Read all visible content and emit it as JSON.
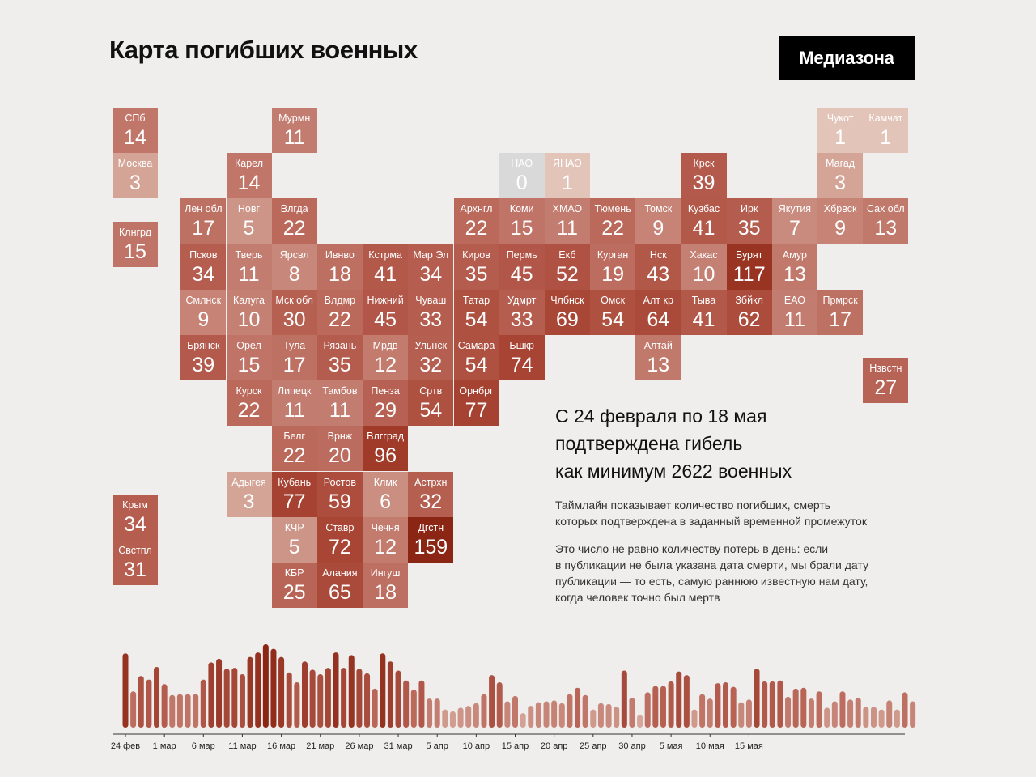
{
  "header": {
    "title": "Карта погибших военных",
    "brand": "Медиазона"
  },
  "colors": {
    "zero": "#d9d9d9",
    "scale_low": "#e2c4b8",
    "scale_mid": "#b66052",
    "scale_high": "#a5402f",
    "scale_max": "#8c2614",
    "axis": "#333333"
  },
  "summary": {
    "line1": "С 24 февраля по 18 мая",
    "line2": "подтверждена гибель",
    "line3": "как минимум 2622 военных"
  },
  "notes": [
    {
      "lines": [
        "Таймлайн показывает количество погибших, смерть",
        "которых подтверждена в заданный временной промежуток"
      ]
    },
    {
      "lines": [
        "Это число не равно количеству потерь в день: если",
        "в публикации не была указана дата смерти, мы брали дату",
        "публикации — то есть, самую раннюю известную нам дату,",
        "когда человек точно был мертв"
      ]
    }
  ],
  "chart_data": [
    {
      "type": "heatmap",
      "regions": [
        {
          "label": "СПб",
          "value": 14,
          "col": 0,
          "row": 0
        },
        {
          "label": "Москва",
          "value": 3,
          "col": 0,
          "row": 1
        },
        {
          "label": "Клнгрд",
          "value": 15,
          "col": 0,
          "row": 2.5
        },
        {
          "label": "Крым",
          "value": 34,
          "col": 0,
          "row": 8.5
        },
        {
          "label": "Свстпл",
          "value": 31,
          "col": 0,
          "row": 9.5
        },
        {
          "label": "Мурмн",
          "value": 11,
          "col": 3.5,
          "row": 0
        },
        {
          "label": "Карел",
          "value": 14,
          "col": 2.5,
          "row": 1
        },
        {
          "label": "Лен обл",
          "value": 17,
          "col": 1.5,
          "row": 2
        },
        {
          "label": "Новг",
          "value": 5,
          "col": 2.5,
          "row": 2
        },
        {
          "label": "Влгда",
          "value": 22,
          "col": 3.5,
          "row": 2
        },
        {
          "label": "Псков",
          "value": 34,
          "col": 1.5,
          "row": 3
        },
        {
          "label": "Тверь",
          "value": 11,
          "col": 2.5,
          "row": 3
        },
        {
          "label": "Ярсвл",
          "value": 8,
          "col": 3.5,
          "row": 3
        },
        {
          "label": "Ивнво",
          "value": 18,
          "col": 4.5,
          "row": 3
        },
        {
          "label": "Кстрма",
          "value": 41,
          "col": 5.5,
          "row": 3
        },
        {
          "label": "Мар Эл",
          "value": 34,
          "col": 6.5,
          "row": 3
        },
        {
          "label": "Смлнск",
          "value": 9,
          "col": 1.5,
          "row": 4
        },
        {
          "label": "Калуга",
          "value": 10,
          "col": 2.5,
          "row": 4
        },
        {
          "label": "Мск обл",
          "value": 30,
          "col": 3.5,
          "row": 4
        },
        {
          "label": "Влдмр",
          "value": 22,
          "col": 4.5,
          "row": 4
        },
        {
          "label": "Нижний",
          "value": 45,
          "col": 5.5,
          "row": 4
        },
        {
          "label": "Чуваш",
          "value": 33,
          "col": 6.5,
          "row": 4
        },
        {
          "label": "Брянск",
          "value": 39,
          "col": 1.5,
          "row": 5
        },
        {
          "label": "Орел",
          "value": 15,
          "col": 2.5,
          "row": 5
        },
        {
          "label": "Тула",
          "value": 17,
          "col": 3.5,
          "row": 5
        },
        {
          "label": "Рязань",
          "value": 35,
          "col": 4.5,
          "row": 5
        },
        {
          "label": "Мрдв",
          "value": 12,
          "col": 5.5,
          "row": 5
        },
        {
          "label": "Ульнск",
          "value": 32,
          "col": 6.5,
          "row": 5
        },
        {
          "label": "Курск",
          "value": 22,
          "col": 2.5,
          "row": 6
        },
        {
          "label": "Липецк",
          "value": 11,
          "col": 3.5,
          "row": 6
        },
        {
          "label": "Тамбов",
          "value": 11,
          "col": 4.5,
          "row": 6
        },
        {
          "label": "Пенза",
          "value": 29,
          "col": 5.5,
          "row": 6
        },
        {
          "label": "Сртв",
          "value": 54,
          "col": 6.5,
          "row": 6
        },
        {
          "label": "Орнбрг",
          "value": 77,
          "col": 7.5,
          "row": 6
        },
        {
          "label": "Белг",
          "value": 22,
          "col": 3.5,
          "row": 7
        },
        {
          "label": "Врнж",
          "value": 20,
          "col": 4.5,
          "row": 7
        },
        {
          "label": "Влгград",
          "value": 96,
          "col": 5.5,
          "row": 7
        },
        {
          "label": "Адыгея",
          "value": 3,
          "col": 2.5,
          "row": 8
        },
        {
          "label": "Кубань",
          "value": 77,
          "col": 3.5,
          "row": 8
        },
        {
          "label": "Ростов",
          "value": 59,
          "col": 4.5,
          "row": 8
        },
        {
          "label": "Клмк",
          "value": 6,
          "col": 5.5,
          "row": 8
        },
        {
          "label": "Астрхн",
          "value": 32,
          "col": 6.5,
          "row": 8
        },
        {
          "label": "КЧР",
          "value": 5,
          "col": 3.5,
          "row": 9
        },
        {
          "label": "Ставр",
          "value": 72,
          "col": 4.5,
          "row": 9
        },
        {
          "label": "Чечня",
          "value": 12,
          "col": 5.5,
          "row": 9
        },
        {
          "label": "Дгстн",
          "value": 159,
          "col": 6.5,
          "row": 9
        },
        {
          "label": "КБР",
          "value": 25,
          "col": 3.5,
          "row": 10
        },
        {
          "label": "Алания",
          "value": 65,
          "col": 4.5,
          "row": 10
        },
        {
          "label": "Ингуш",
          "value": 18,
          "col": 5.5,
          "row": 10
        },
        {
          "label": "Архнгл",
          "value": 22,
          "col": 7.5,
          "row": 2
        },
        {
          "label": "Киров",
          "value": 35,
          "col": 7.5,
          "row": 3
        },
        {
          "label": "Татар",
          "value": 54,
          "col": 7.5,
          "row": 4
        },
        {
          "label": "Самара",
          "value": 54,
          "col": 7.5,
          "row": 5
        },
        {
          "label": "НАО",
          "value": 0,
          "col": 8.5,
          "row": 1
        },
        {
          "label": "Коми",
          "value": 15,
          "col": 8.5,
          "row": 2
        },
        {
          "label": "Пермь",
          "value": 45,
          "col": 8.5,
          "row": 3
        },
        {
          "label": "Удмрт",
          "value": 33,
          "col": 8.5,
          "row": 4
        },
        {
          "label": "Бшкр",
          "value": 74,
          "col": 8.5,
          "row": 5
        },
        {
          "label": "ЯНАО",
          "value": 1,
          "col": 9.5,
          "row": 1
        },
        {
          "label": "ХМАО",
          "value": 11,
          "col": 9.5,
          "row": 2
        },
        {
          "label": "Екб",
          "value": 52,
          "col": 9.5,
          "row": 3
        },
        {
          "label": "Члбнск",
          "value": 69,
          "col": 9.5,
          "row": 4
        },
        {
          "label": "Тюмень",
          "value": 22,
          "col": 10.5,
          "row": 2
        },
        {
          "label": "Курган",
          "value": 19,
          "col": 10.5,
          "row": 3
        },
        {
          "label": "Омск",
          "value": 54,
          "col": 10.5,
          "row": 4
        },
        {
          "label": "Томск",
          "value": 9,
          "col": 11.5,
          "row": 2
        },
        {
          "label": "Нск",
          "value": 43,
          "col": 11.5,
          "row": 3
        },
        {
          "label": "Алт кр",
          "value": 64,
          "col": 11.5,
          "row": 4
        },
        {
          "label": "Алтай",
          "value": 13,
          "col": 11.5,
          "row": 5
        },
        {
          "label": "Крск",
          "value": 39,
          "col": 12.5,
          "row": 1
        },
        {
          "label": "Кузбас",
          "value": 41,
          "col": 12.5,
          "row": 2
        },
        {
          "label": "Хакас",
          "value": 10,
          "col": 12.5,
          "row": 3
        },
        {
          "label": "Тыва",
          "value": 41,
          "col": 12.5,
          "row": 4
        },
        {
          "label": "Ирк",
          "value": 35,
          "col": 13.5,
          "row": 2
        },
        {
          "label": "Бурят",
          "value": 117,
          "col": 13.5,
          "row": 3
        },
        {
          "label": "Збйкл",
          "value": 62,
          "col": 13.5,
          "row": 4
        },
        {
          "label": "Якутия",
          "value": 7,
          "col": 14.5,
          "row": 2
        },
        {
          "label": "Амур",
          "value": 13,
          "col": 14.5,
          "row": 3
        },
        {
          "label": "ЕАО",
          "value": 11,
          "col": 14.5,
          "row": 4
        },
        {
          "label": "Чукот",
          "value": 1,
          "col": 15.5,
          "row": 0
        },
        {
          "label": "Магад",
          "value": 3,
          "col": 15.5,
          "row": 1
        },
        {
          "label": "Хбрвск",
          "value": 9,
          "col": 15.5,
          "row": 2
        },
        {
          "label": "Прмрск",
          "value": 17,
          "col": 15.5,
          "row": 4
        },
        {
          "label": "Камчат",
          "value": 1,
          "col": 16.5,
          "row": 0
        },
        {
          "label": "Сах обл",
          "value": 13,
          "col": 16.5,
          "row": 2
        },
        {
          "label": "Нзвстн",
          "value": 27,
          "col": 16.5,
          "row": 5.5
        }
      ]
    },
    {
      "type": "bar",
      "x_tick_labels": [
        "24 фев",
        "1 мар",
        "6 мар",
        "11 мар",
        "16 мар",
        "21 мар",
        "26 мар",
        "31 мар",
        "5 апр",
        "10 апр",
        "15 апр",
        "20 апр",
        "25 апр",
        "30 апр",
        "5 мая",
        "10 мая",
        "15 мая"
      ],
      "values": [
        82,
        40,
        57,
        53,
        67,
        48,
        36,
        37,
        37,
        37,
        53,
        72,
        76,
        65,
        66,
        59,
        78,
        83,
        92,
        87,
        78,
        61,
        50,
        73,
        64,
        59,
        66,
        83,
        66,
        80,
        65,
        60,
        43,
        82,
        73,
        63,
        52,
        42,
        52,
        32,
        32,
        20,
        18,
        22,
        24,
        27,
        37,
        58,
        50,
        29,
        35,
        16,
        24,
        28,
        29,
        30,
        27,
        37,
        44,
        36,
        20,
        27,
        26,
        23,
        63,
        33,
        14,
        39,
        46,
        46,
        51,
        62,
        58,
        20,
        37,
        32,
        49,
        50,
        45,
        28,
        31,
        65,
        51,
        51,
        52,
        34,
        43,
        44,
        32,
        40,
        22,
        29,
        40,
        31,
        33,
        23,
        23,
        20,
        30,
        20,
        39,
        29
      ]
    }
  ]
}
